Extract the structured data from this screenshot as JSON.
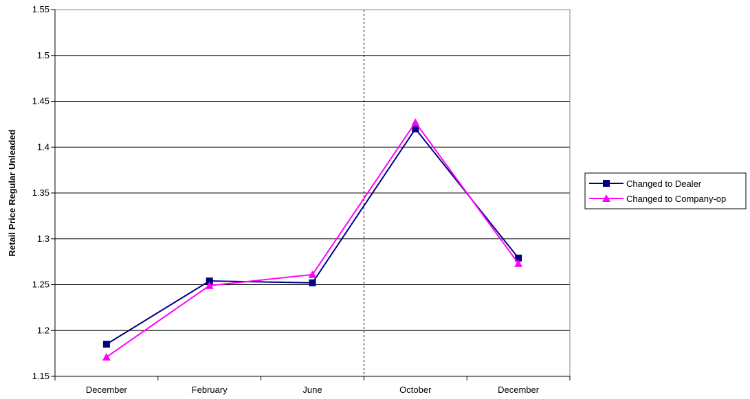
{
  "chart_data": {
    "type": "line",
    "categories": [
      "December",
      "February",
      "June",
      "October",
      "December"
    ],
    "series": [
      {
        "name": "Changed to Dealer",
        "values": [
          1.185,
          1.254,
          1.252,
          1.42,
          1.279
        ],
        "color": "#000080",
        "marker": "square"
      },
      {
        "name": "Changed to Company-op",
        "values": [
          1.171,
          1.249,
          1.261,
          1.427,
          1.273
        ],
        "color": "#ff00ff",
        "marker": "triangle"
      }
    ],
    "ylabel": "Retail Price Regular Unleaded",
    "xlabel": "",
    "ylim": [
      1.15,
      1.55
    ],
    "yticks": [
      "1.15",
      "1.2",
      "1.25",
      "1.3",
      "1.35",
      "1.4",
      "1.45",
      "1.5",
      "1.55"
    ],
    "grid": "horizontal",
    "divider_between_categories": [
      2,
      3
    ],
    "legend_position": "right"
  }
}
